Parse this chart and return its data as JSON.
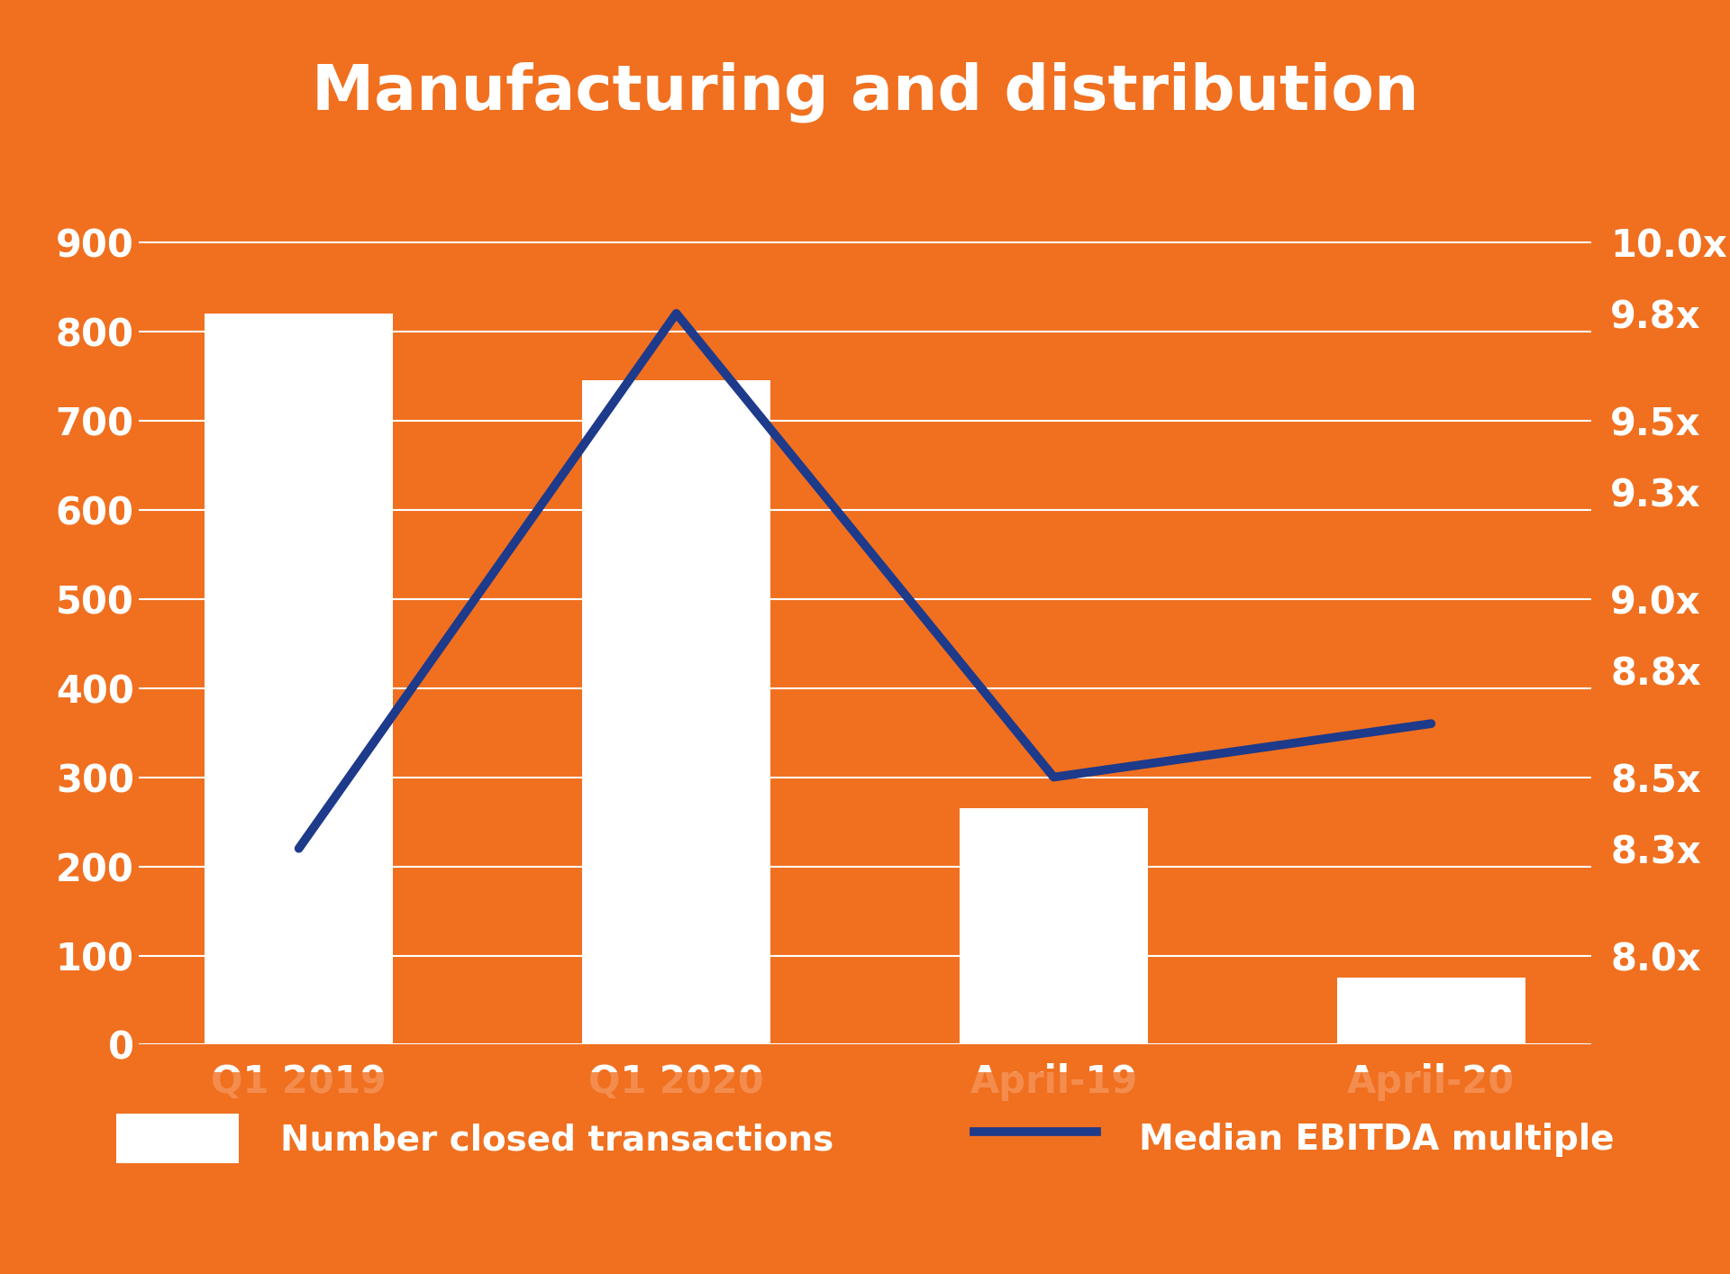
{
  "title": "Manufacturing and distribution",
  "background_color": "#F07020",
  "bar_color": "#FFFFFF",
  "line_color": "#1E3A8A",
  "categories": [
    "Q1 2019",
    "Q1 2020",
    "April-19",
    "April-20"
  ],
  "bar_values": [
    820,
    745,
    265,
    75
  ],
  "line_values": [
    8.3,
    9.8,
    8.5,
    8.65
  ],
  "left_ylim": [
    0,
    1000
  ],
  "left_yticks": [
    0,
    100,
    200,
    300,
    400,
    500,
    600,
    700,
    800,
    900
  ],
  "right_yticks_labels": [
    "8.0x",
    "8.3x",
    "8.5x",
    "8.8x",
    "9.0x",
    "9.3x",
    "9.5x",
    "9.8x",
    "10.0x"
  ],
  "right_yticks_values": [
    8.0,
    8.3,
    8.5,
    8.8,
    9.0,
    9.3,
    9.5,
    9.8,
    10.0
  ],
  "right_ylim": [
    7.556,
    10.222
  ],
  "grid_color": "#FFFFFF",
  "tick_label_color": "#FFFFFF",
  "title_color": "#FFFFFF",
  "legend_bar_label": "Number closed transactions",
  "legend_line_label": "Median EBITDA multiple",
  "title_fontsize": 50,
  "tick_fontsize": 30,
  "legend_fontsize": 28,
  "xlabel_fontsize": 30,
  "line_width": 7,
  "legend_bg_color": "#FFFFFF",
  "rounded_corner_color": "#FFFFFF"
}
